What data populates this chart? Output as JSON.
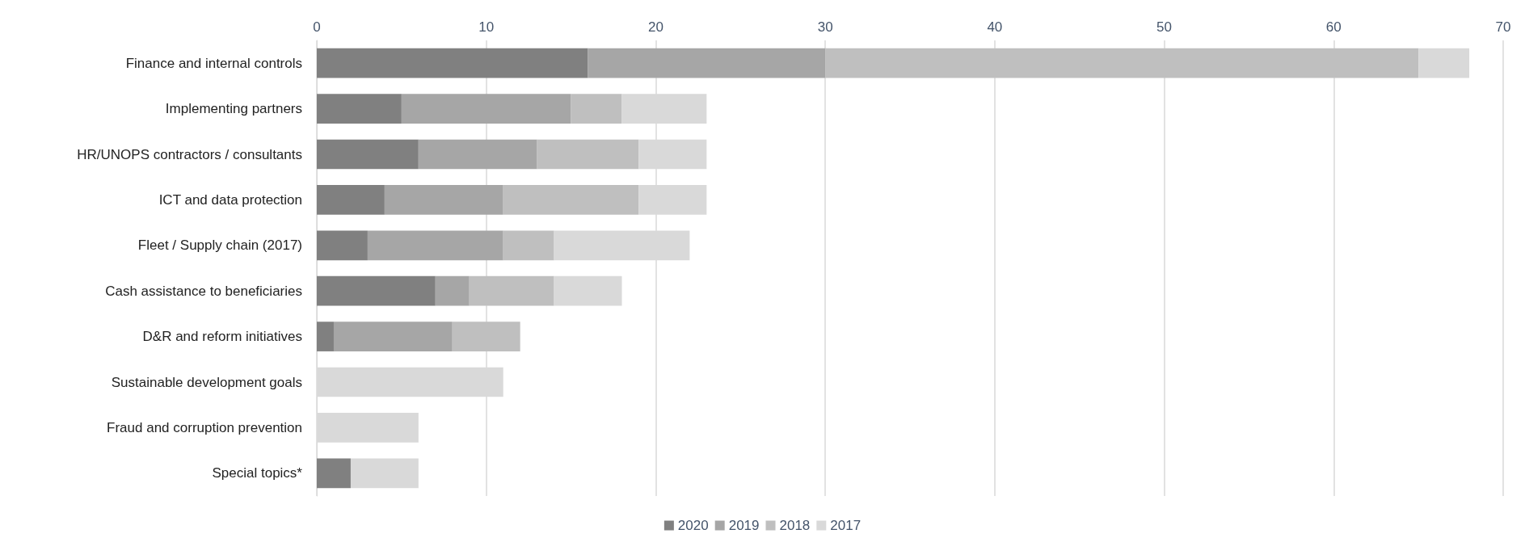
{
  "chart_data": {
    "type": "bar",
    "orientation": "horizontal",
    "stacked": true,
    "categories": [
      "Finance and internal controls",
      "Implementing partners",
      "HR/UNOPS contractors / consultants",
      "ICT and data protection",
      "Fleet / Supply chain (2017)",
      "Cash assistance to beneficiaries",
      "D&R and reform initiatives",
      "Sustainable development goals",
      "Fraud and corruption prevention",
      "Special topics*"
    ],
    "series": [
      {
        "name": "2020",
        "color": "#808080",
        "values": [
          16,
          5,
          6,
          4,
          3,
          7,
          1,
          0,
          0,
          2
        ]
      },
      {
        "name": "2019",
        "color": "#a6a6a6",
        "values": [
          14,
          10,
          7,
          7,
          8,
          2,
          7,
          0,
          0,
          0
        ]
      },
      {
        "name": "2018",
        "color": "#bfbfbf",
        "values": [
          35,
          3,
          6,
          8,
          3,
          5,
          4,
          0,
          0,
          0
        ]
      },
      {
        "name": "2017",
        "color": "#d9d9d9",
        "values": [
          3,
          5,
          4,
          4,
          8,
          4,
          0,
          11,
          6,
          4
        ]
      }
    ],
    "xlim": [
      0,
      70
    ],
    "xticks": [
      0,
      10,
      20,
      30,
      40,
      50,
      60,
      70
    ],
    "grid": "x",
    "legend": "bottom"
  }
}
